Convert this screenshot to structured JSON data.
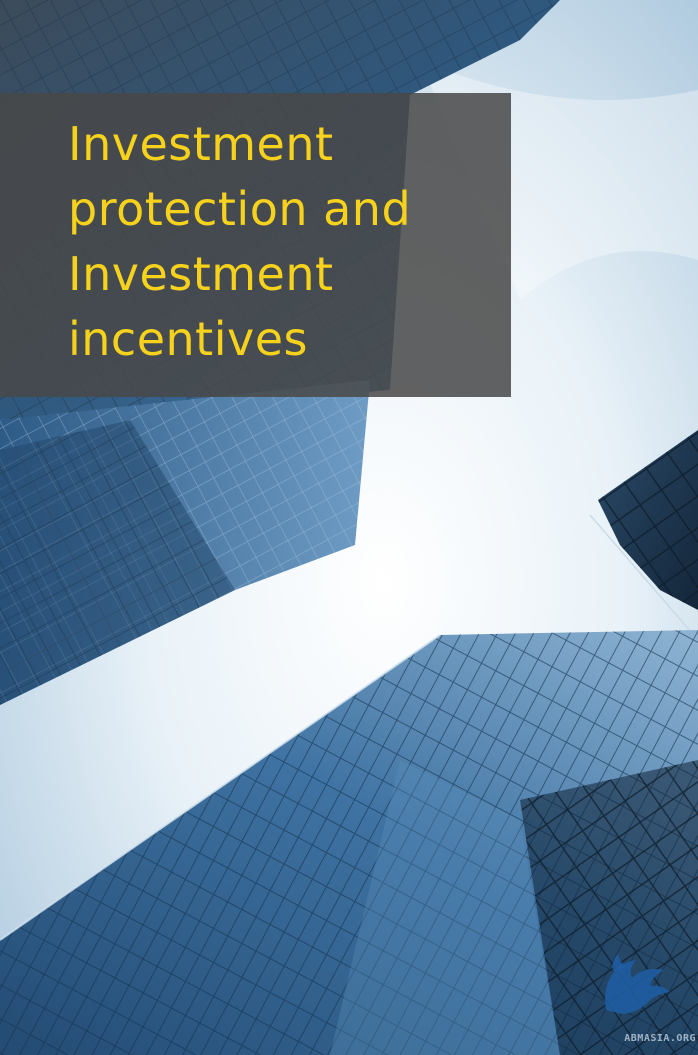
{
  "cover": {
    "title_lines": [
      "Investment",
      "protection and",
      "Investment",
      "incentives"
    ],
    "colors": {
      "title": "#f7d21c",
      "panel": "#484848",
      "sky": "#e8f1f7",
      "glass": "#2e5d88"
    }
  },
  "watermark": {
    "text": "ABMASIA.ORG",
    "icon": "horse-emblem-icon"
  }
}
